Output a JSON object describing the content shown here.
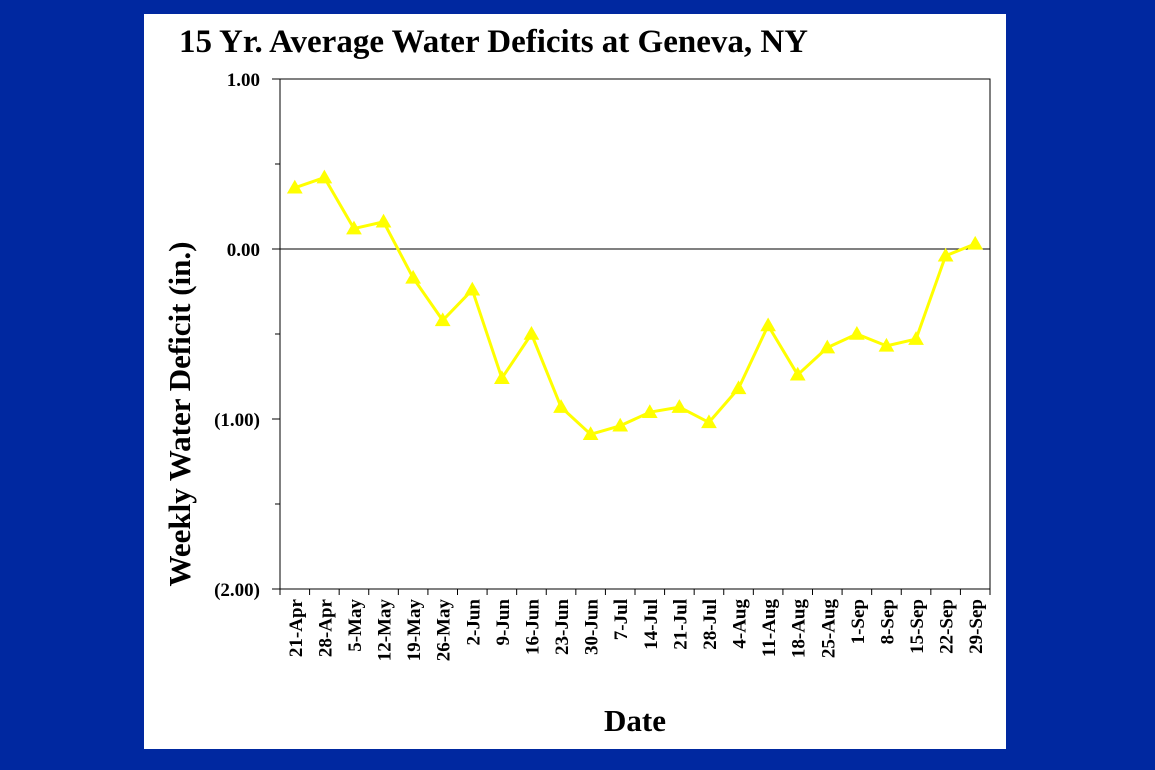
{
  "chart_data": {
    "type": "line",
    "title": "15 Yr. Average Water Deficits at Geneva, NY",
    "xlabel": "Date",
    "ylabel": "Weekly Water Deficit (in.)",
    "ylim": [
      -2,
      1
    ],
    "ytick_values": [
      1,
      0,
      -1,
      -2
    ],
    "ytick_labels": [
      "1.00",
      "0.00",
      "(1.00)",
      "(2.00)"
    ],
    "minor_ytick_values": [
      0.5,
      -0.5,
      -1.5
    ],
    "categories": [
      "21-Apr",
      "28-Apr",
      "5-May",
      "12-May",
      "19-May",
      "26-May",
      "2-Jun",
      "9-Jun",
      "16-Jun",
      "23-Jun",
      "30-Jun",
      "7-Jul",
      "14-Jul",
      "21-Jul",
      "28-Jul",
      "4-Aug",
      "11-Aug",
      "18-Aug",
      "25-Aug",
      "1-Sep",
      "8-Sep",
      "15-Sep",
      "22-Sep",
      "29-Sep"
    ],
    "series": [
      {
        "values": [
          0.36,
          0.42,
          0.12,
          0.16,
          -0.17,
          -0.42,
          -0.24,
          -0.76,
          -0.5,
          -0.93,
          -1.09,
          -1.04,
          -0.96,
          -0.93,
          -1.02,
          -0.82,
          -0.45,
          -0.74,
          -0.58,
          -0.5,
          -0.57,
          -0.53,
          -0.04,
          0.03
        ],
        "color": "#ffff00",
        "marker": "triangle"
      }
    ],
    "zero_line": true,
    "grid": false,
    "legend": "none"
  },
  "colors": {
    "background": "#0028a0",
    "panel": "#ffffff",
    "series": "#ffff00"
  }
}
